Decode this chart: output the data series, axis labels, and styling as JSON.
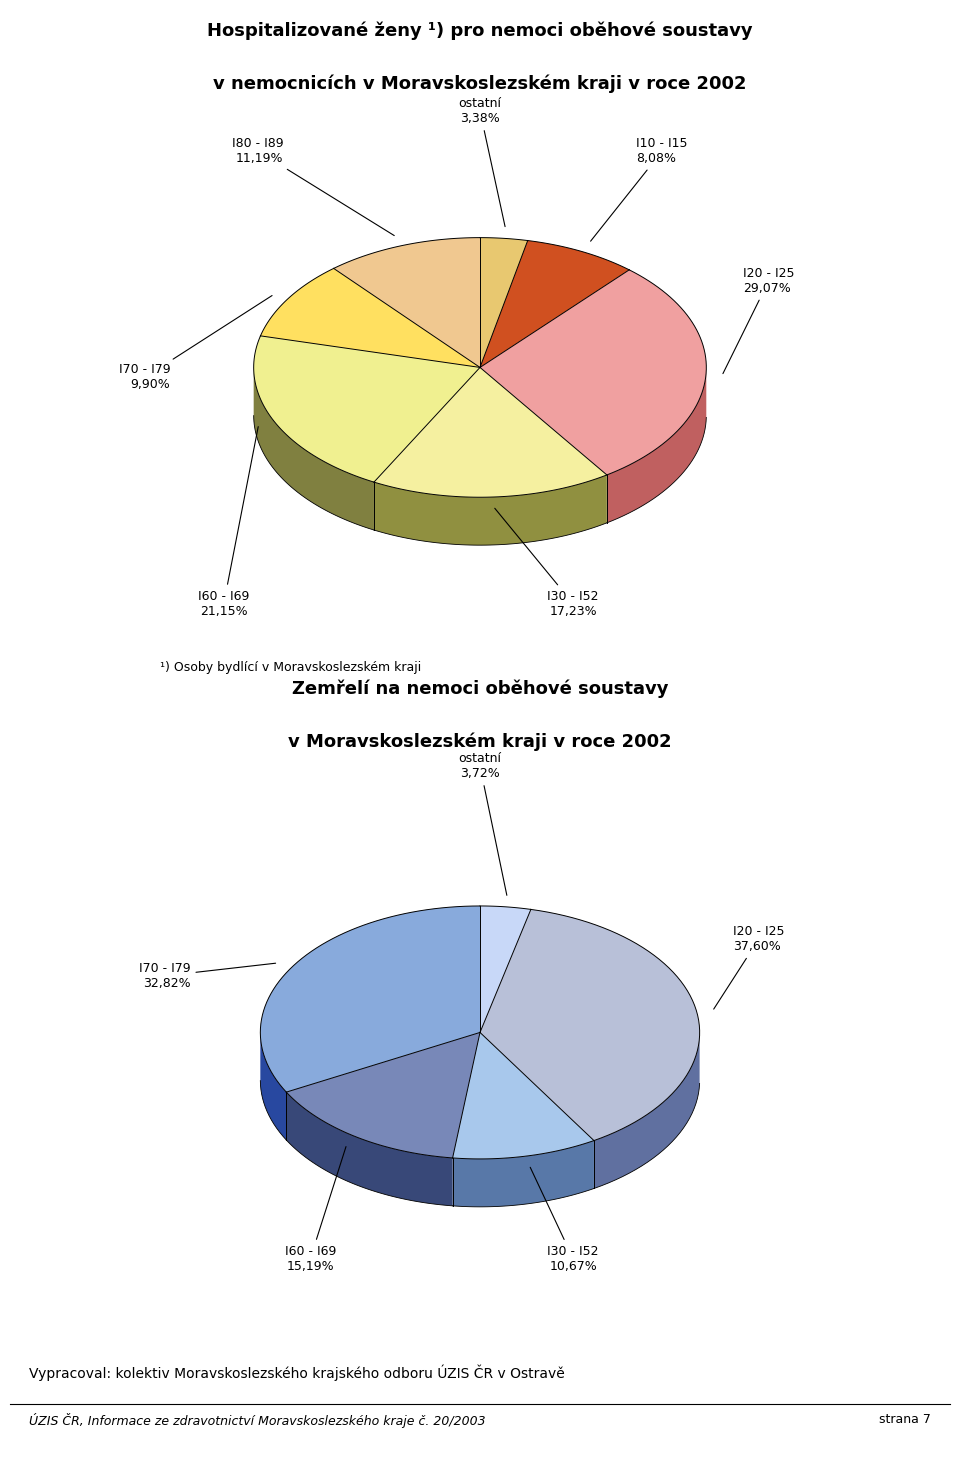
{
  "chart1": {
    "title_line1": "Hospitalizované ženy ¹) pro nemoci oběhové soustavy",
    "title_line2": "v nemocnicích v Moravskoslezském kraji v roce 2002",
    "slices": [
      {
        "label": "ostatní",
        "pct": "3,38%",
        "value": 3.38,
        "color_top": "#E8C870",
        "color_side": "#A08030"
      },
      {
        "label": "I10 - I15",
        "pct": "8,08%",
        "value": 8.08,
        "color_top": "#D05020",
        "color_side": "#903010"
      },
      {
        "label": "I20 - I25",
        "pct": "29,07%",
        "value": 29.07,
        "color_top": "#F0A0A0",
        "color_side": "#C06060"
      },
      {
        "label": "I30 - I52",
        "pct": "17,23%",
        "value": 17.23,
        "color_top": "#F5F0A0",
        "color_side": "#909040"
      },
      {
        "label": "I60 - I69",
        "pct": "21,15%",
        "value": 21.15,
        "color_top": "#F0F090",
        "color_side": "#808040"
      },
      {
        "label": "I70 - I79",
        "pct": "9,90%",
        "value": 9.9,
        "color_top": "#FFE060",
        "color_side": "#C09020"
      },
      {
        "label": "I80 - I89",
        "pct": "11,19%",
        "value": 11.19,
        "color_top": "#F0C890",
        "color_side": "#B07040"
      }
    ],
    "note": "¹) Osoby bydlící v Moravskoslezském kraji"
  },
  "chart2": {
    "title_line1": "Zemřelí na nemoci oběhové soustavy",
    "title_line2": "v Moravskoslezském kraji v roce 2002",
    "slices": [
      {
        "label": "ostatní",
        "pct": "3,72%",
        "value": 3.72,
        "color_top": "#C8D8F8",
        "color_side": "#8090B8"
      },
      {
        "label": "I20 - I25",
        "pct": "37,60%",
        "value": 37.6,
        "color_top": "#B8C0D8",
        "color_side": "#6070A0"
      },
      {
        "label": "I30 - I52",
        "pct": "10,67%",
        "value": 10.67,
        "color_top": "#A8C8EC",
        "color_side": "#5878A8"
      },
      {
        "label": "I60 - I69",
        "pct": "15,19%",
        "value": 15.19,
        "color_top": "#7888B8",
        "color_side": "#384878"
      },
      {
        "label": "I70 - I79",
        "pct": "32,82%",
        "value": 32.82,
        "color_top": "#88AADC",
        "color_side": "#2848A0"
      }
    ]
  },
  "footer1": "Vypracoval: kolektiv Moravskoslezského krajského odboru ÚZIS ČR v Ostravě",
  "footer2": "ÚZIS ČR, Informace ze zdravotnictví Moravskoslezského kraje č. 20/2003",
  "footer3": "strana 7",
  "bg_color": "#FFFFFF"
}
